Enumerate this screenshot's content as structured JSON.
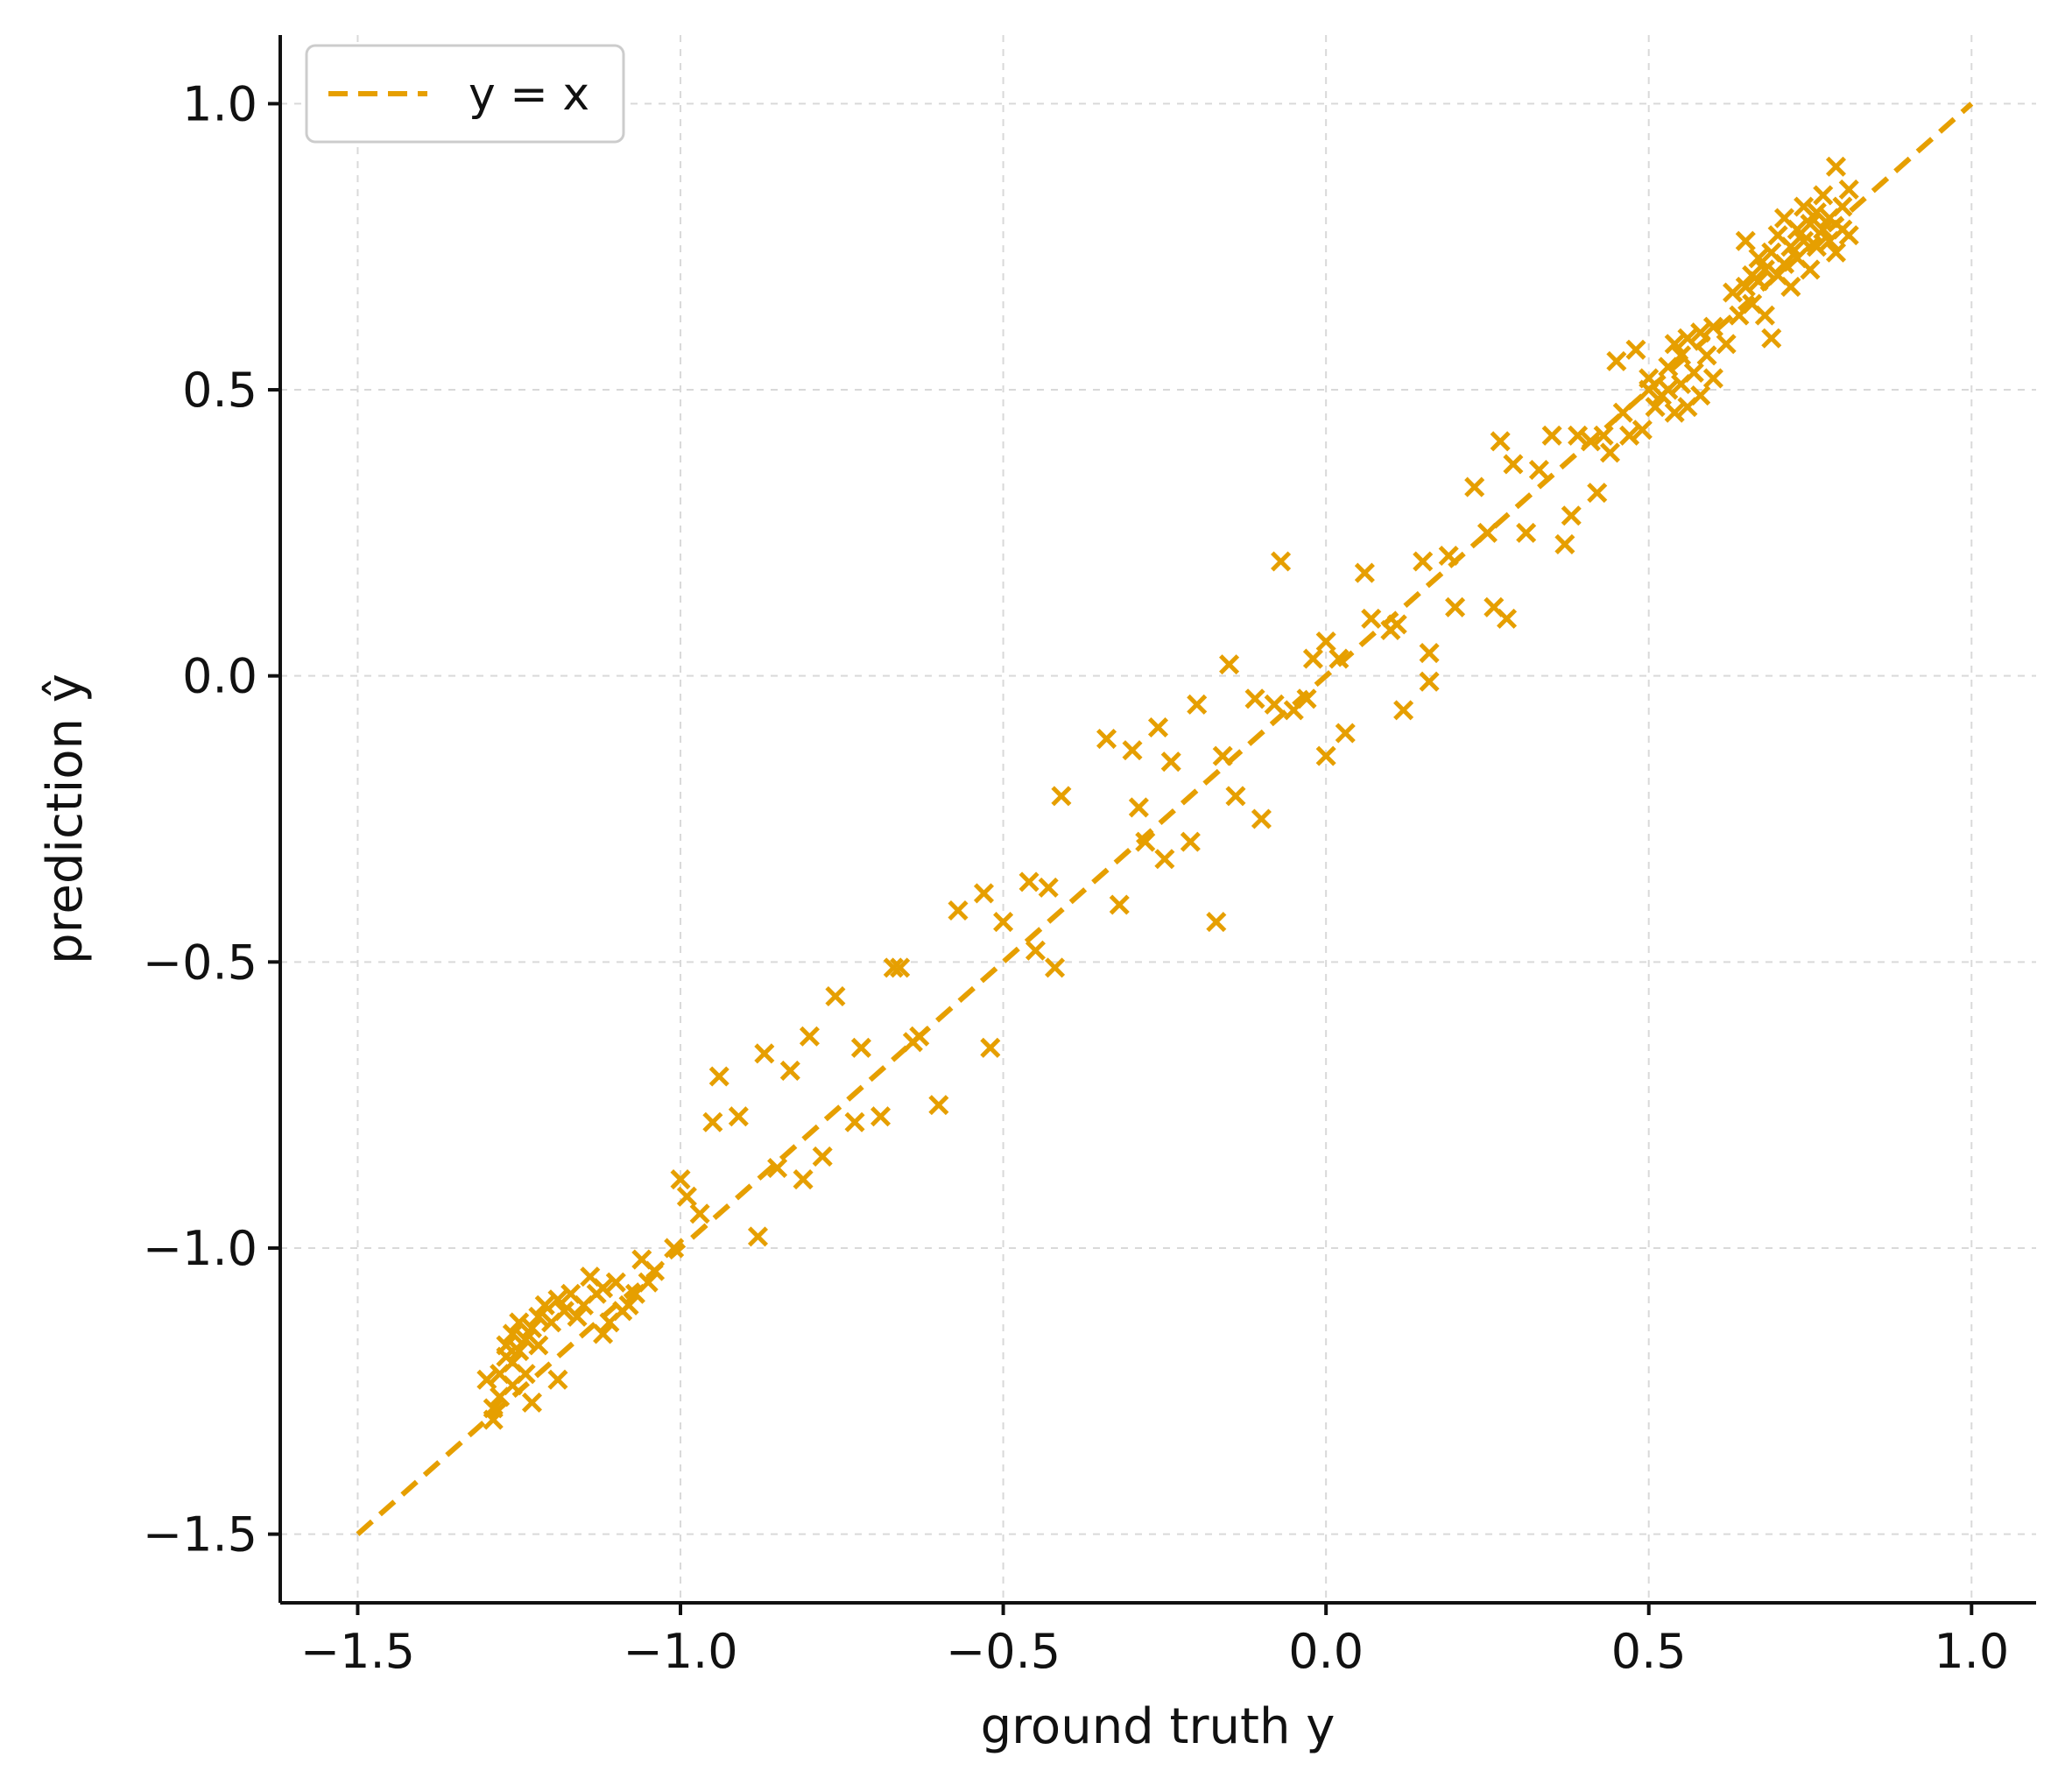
{
  "chart_data": {
    "type": "scatter",
    "title": "",
    "xlabel": "ground truth y",
    "ylabel": "prediction ŷ",
    "xlim": [
      -1.62,
      1.1
    ],
    "ylim": [
      -1.62,
      1.12
    ],
    "xticks": [
      -1.5,
      -1.0,
      -0.5,
      0.0,
      0.5,
      1.0
    ],
    "yticks": [
      -1.5,
      -1.0,
      -0.5,
      0.0,
      0.5,
      1.0
    ],
    "xtick_labels": [
      "−1.5",
      "−1.0",
      "−0.5",
      "0.0",
      "0.5",
      "1.0"
    ],
    "ytick_labels": [
      "−1.5",
      "−1.0",
      "−0.5",
      "0.0",
      "0.5",
      "1.0"
    ],
    "grid": true,
    "legend": {
      "placement": "top-left",
      "entries": [
        "y = x"
      ]
    },
    "colors": {
      "series": "#E69F00",
      "grid": "#d9d9d9",
      "axis": "#111111"
    },
    "reference_line": {
      "name": "y = x",
      "x": [
        -1.5,
        1.0
      ],
      "y": [
        -1.5,
        1.0
      ],
      "style": "dashed"
    },
    "series": [
      {
        "marker": "x",
        "points": [
          [
            -1.3,
            -1.23
          ],
          [
            -1.29,
            -1.3
          ],
          [
            -1.29,
            -1.28
          ],
          [
            -1.28,
            -1.26
          ],
          [
            -1.28,
            -1.22
          ],
          [
            -1.27,
            -1.19
          ],
          [
            -1.27,
            -1.17
          ],
          [
            -1.26,
            -1.2
          ],
          [
            -1.26,
            -1.15
          ],
          [
            -1.26,
            -1.24
          ],
          [
            -1.25,
            -1.18
          ],
          [
            -1.25,
            -1.13
          ],
          [
            -1.24,
            -1.16
          ],
          [
            -1.24,
            -1.22
          ],
          [
            -1.23,
            -1.27
          ],
          [
            -1.23,
            -1.14
          ],
          [
            -1.22,
            -1.17
          ],
          [
            -1.22,
            -1.12
          ],
          [
            -1.21,
            -1.1
          ],
          [
            -1.2,
            -1.13
          ],
          [
            -1.19,
            -1.09
          ],
          [
            -1.19,
            -1.23
          ],
          [
            -1.18,
            -1.11
          ],
          [
            -1.17,
            -1.08
          ],
          [
            -1.16,
            -1.12
          ],
          [
            -1.15,
            -1.1
          ],
          [
            -1.14,
            -1.05
          ],
          [
            -1.13,
            -1.08
          ],
          [
            -1.12,
            -1.07
          ],
          [
            -1.12,
            -1.15
          ],
          [
            -1.11,
            -1.13
          ],
          [
            -1.1,
            -1.06
          ],
          [
            -1.09,
            -1.11
          ],
          [
            -1.08,
            -1.1
          ],
          [
            -1.07,
            -1.08
          ],
          [
            -1.06,
            -1.02
          ],
          [
            -1.05,
            -1.06
          ],
          [
            -1.04,
            -1.04
          ],
          [
            -1.01,
            -1.0
          ],
          [
            -1.0,
            -0.88
          ],
          [
            -0.99,
            -0.91
          ],
          [
            -0.97,
            -0.94
          ],
          [
            -0.95,
            -0.78
          ],
          [
            -0.94,
            -0.7
          ],
          [
            -0.91,
            -0.77
          ],
          [
            -0.88,
            -0.98
          ],
          [
            -0.87,
            -0.66
          ],
          [
            -0.85,
            -0.86
          ],
          [
            -0.83,
            -0.69
          ],
          [
            -0.81,
            -0.88
          ],
          [
            -0.8,
            -0.63
          ],
          [
            -0.78,
            -0.84
          ],
          [
            -0.76,
            -0.56
          ],
          [
            -0.73,
            -0.78
          ],
          [
            -0.72,
            -0.65
          ],
          [
            -0.69,
            -0.77
          ],
          [
            -0.67,
            -0.51
          ],
          [
            -0.66,
            -0.51
          ],
          [
            -0.64,
            -0.64
          ],
          [
            -0.63,
            -0.63
          ],
          [
            -0.6,
            -0.75
          ],
          [
            -0.57,
            -0.41
          ],
          [
            -0.53,
            -0.38
          ],
          [
            -0.52,
            -0.65
          ],
          [
            -0.5,
            -0.43
          ],
          [
            -0.46,
            -0.36
          ],
          [
            -0.45,
            -0.48
          ],
          [
            -0.43,
            -0.37
          ],
          [
            -0.42,
            -0.51
          ],
          [
            -0.41,
            -0.21
          ],
          [
            -0.34,
            -0.11
          ],
          [
            -0.32,
            -0.4
          ],
          [
            -0.3,
            -0.13
          ],
          [
            -0.29,
            -0.23
          ],
          [
            -0.28,
            -0.29
          ],
          [
            -0.26,
            -0.09
          ],
          [
            -0.25,
            -0.32
          ],
          [
            -0.24,
            -0.15
          ],
          [
            -0.21,
            -0.29
          ],
          [
            -0.2,
            -0.05
          ],
          [
            -0.17,
            -0.43
          ],
          [
            -0.16,
            -0.14
          ],
          [
            -0.15,
            0.02
          ],
          [
            -0.14,
            -0.21
          ],
          [
            -0.11,
            -0.04
          ],
          [
            -0.1,
            -0.25
          ],
          [
            -0.08,
            -0.05
          ],
          [
            -0.07,
            0.2
          ],
          [
            -0.05,
            -0.06
          ],
          [
            -0.03,
            -0.04
          ],
          [
            -0.02,
            0.03
          ],
          [
            0.0,
            0.06
          ],
          [
            0.0,
            -0.14
          ],
          [
            0.02,
            0.03
          ],
          [
            0.03,
            -0.1
          ],
          [
            0.06,
            0.18
          ],
          [
            0.07,
            0.1
          ],
          [
            0.1,
            0.08
          ],
          [
            0.11,
            0.09
          ],
          [
            0.12,
            -0.06
          ],
          [
            0.15,
            0.2
          ],
          [
            0.16,
            0.04
          ],
          [
            0.16,
            -0.01
          ],
          [
            0.19,
            0.21
          ],
          [
            0.2,
            0.12
          ],
          [
            0.23,
            0.33
          ],
          [
            0.25,
            0.25
          ],
          [
            0.26,
            0.12
          ],
          [
            0.27,
            0.41
          ],
          [
            0.28,
            0.1
          ],
          [
            0.29,
            0.37
          ],
          [
            0.31,
            0.25
          ],
          [
            0.33,
            0.36
          ],
          [
            0.35,
            0.42
          ],
          [
            0.37,
            0.23
          ],
          [
            0.38,
            0.28
          ],
          [
            0.39,
            0.42
          ],
          [
            0.41,
            0.41
          ],
          [
            0.42,
            0.32
          ],
          [
            0.43,
            0.42
          ],
          [
            0.44,
            0.39
          ],
          [
            0.45,
            0.55
          ],
          [
            0.46,
            0.46
          ],
          [
            0.47,
            0.42
          ],
          [
            0.48,
            0.57
          ],
          [
            0.49,
            0.43
          ],
          [
            0.5,
            0.5
          ],
          [
            0.5,
            0.52
          ],
          [
            0.51,
            0.47
          ],
          [
            0.52,
            0.49
          ],
          [
            0.53,
            0.54
          ],
          [
            0.53,
            0.5
          ],
          [
            0.54,
            0.46
          ],
          [
            0.54,
            0.58
          ],
          [
            0.55,
            0.51
          ],
          [
            0.55,
            0.56
          ],
          [
            0.56,
            0.47
          ],
          [
            0.56,
            0.59
          ],
          [
            0.57,
            0.53
          ],
          [
            0.58,
            0.6
          ],
          [
            0.58,
            0.49
          ],
          [
            0.59,
            0.56
          ],
          [
            0.6,
            0.52
          ],
          [
            0.6,
            0.61
          ],
          [
            0.62,
            0.58
          ],
          [
            0.63,
            0.67
          ],
          [
            0.64,
            0.63
          ],
          [
            0.65,
            0.76
          ],
          [
            0.65,
            0.68
          ],
          [
            0.66,
            0.7
          ],
          [
            0.66,
            0.65
          ],
          [
            0.67,
            0.73
          ],
          [
            0.67,
            0.69
          ],
          [
            0.68,
            0.71
          ],
          [
            0.68,
            0.63
          ],
          [
            0.69,
            0.74
          ],
          [
            0.69,
            0.59
          ],
          [
            0.7,
            0.77
          ],
          [
            0.7,
            0.7
          ],
          [
            0.71,
            0.72
          ],
          [
            0.71,
            0.8
          ],
          [
            0.72,
            0.75
          ],
          [
            0.72,
            0.68
          ],
          [
            0.73,
            0.78
          ],
          [
            0.73,
            0.73
          ],
          [
            0.74,
            0.82
          ],
          [
            0.74,
            0.76
          ],
          [
            0.75,
            0.71
          ],
          [
            0.75,
            0.79
          ],
          [
            0.76,
            0.81
          ],
          [
            0.76,
            0.75
          ],
          [
            0.77,
            0.78
          ],
          [
            0.77,
            0.84
          ],
          [
            0.78,
            0.76
          ],
          [
            0.78,
            0.8
          ],
          [
            0.79,
            0.89
          ],
          [
            0.79,
            0.74
          ],
          [
            0.8,
            0.82
          ],
          [
            0.8,
            0.78
          ],
          [
            0.81,
            0.85
          ],
          [
            0.81,
            0.77
          ]
        ]
      }
    ]
  }
}
